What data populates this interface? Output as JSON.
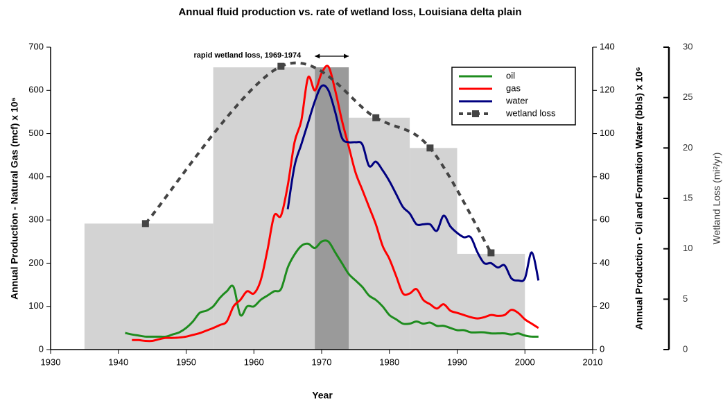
{
  "chart_data": {
    "type": "line",
    "title": "Annual fluid production vs. rate of wetland loss, Louisiana delta plain",
    "xlabel": "Year",
    "ylabel": "Annual Production - Natural Gas (mcf) x 10⁶",
    "y2label": "Annual Production - Oil and Formation Water (bbls) x 10⁶",
    "y3label": "Wetland Loss (mi²/yr)",
    "annotation": {
      "text": "rapid wetland loss, 1969-1974",
      "span": [
        1969,
        1974
      ],
      "color": "#9a9a9a"
    },
    "xlim": [
      1930,
      2010
    ],
    "xticks": [
      1930,
      1940,
      1950,
      1960,
      1970,
      1980,
      1990,
      2000,
      2010
    ],
    "ylim": [
      0,
      700
    ],
    "yticks": [
      0,
      100,
      200,
      300,
      400,
      500,
      600,
      700
    ],
    "y2lim": [
      0,
      140
    ],
    "y2ticks": [
      0,
      20,
      40,
      60,
      80,
      100,
      120,
      140
    ],
    "y3lim": [
      0,
      30
    ],
    "y3ticks": [
      0,
      5,
      10,
      15,
      20,
      25,
      30
    ],
    "legend": "upper right",
    "periods": {
      "bins": [
        1935,
        1954,
        1974,
        1983,
        1990,
        2000
      ],
      "values": [
        12.5,
        28,
        23,
        20,
        9.5
      ],
      "color": "#d3d3d3",
      "axis": "y3"
    },
    "x": [
      1941,
      1942,
      1943,
      1944,
      1945,
      1946,
      1947,
      1948,
      1949,
      1950,
      1951,
      1952,
      1953,
      1954,
      1955,
      1956,
      1957,
      1958,
      1959,
      1960,
      1961,
      1962,
      1963,
      1964,
      1965,
      1966,
      1967,
      1968,
      1969,
      1970,
      1971,
      1972,
      1973,
      1974,
      1975,
      1976,
      1977,
      1978,
      1979,
      1980,
      1981,
      1982,
      1983,
      1984,
      1985,
      1986,
      1987,
      1988,
      1989,
      1990,
      1991,
      1992,
      1993,
      1994,
      1995,
      1996,
      1997,
      1998,
      1999,
      2000,
      2001,
      2002
    ],
    "series": [
      {
        "name": "oil",
        "color": "#1e8c1e",
        "axis": "y2",
        "values": [
          7.7,
          7,
          6.5,
          6,
          6,
          6,
          6,
          7,
          8,
          10,
          13,
          17,
          18,
          20,
          24,
          27,
          29,
          16,
          20,
          20,
          23,
          25,
          27,
          28,
          38,
          44,
          48,
          49,
          47,
          50,
          50,
          45,
          40,
          35,
          32,
          29,
          25,
          23,
          20,
          16,
          14,
          12,
          12,
          13,
          12,
          12.5,
          11,
          11,
          10,
          9,
          9,
          8,
          8,
          8,
          7.5,
          7.5,
          7.5,
          7,
          7.5,
          6.5,
          6,
          6
        ]
      },
      {
        "name": "gas",
        "color": "#ff0000",
        "values": [
          null,
          22,
          22,
          20,
          20,
          24,
          27,
          27,
          28,
          30,
          34,
          38,
          44,
          50,
          57,
          65,
          100,
          115,
          135,
          130,
          160,
          230,
          310,
          310,
          380,
          480,
          530,
          630,
          600,
          640,
          655,
          600,
          530,
          470,
          410,
          370,
          330,
          290,
          240,
          210,
          170,
          130,
          130,
          140,
          115,
          105,
          95,
          105,
          90,
          85,
          80,
          75,
          72,
          75,
          80,
          78,
          80,
          92,
          85,
          70,
          60,
          50
        ]
      },
      {
        "name": "water",
        "color": "#000080",
        "axis": "y2",
        "values": [
          null,
          null,
          null,
          null,
          null,
          null,
          null,
          null,
          null,
          null,
          null,
          null,
          null,
          null,
          null,
          null,
          null,
          null,
          null,
          null,
          null,
          null,
          null,
          null,
          65,
          85,
          95,
          105,
          115,
          122,
          120,
          110,
          98,
          96,
          96,
          95,
          85,
          87,
          83,
          78,
          72,
          66,
          63,
          58,
          58,
          58,
          55,
          62,
          57,
          54,
          52,
          52,
          45,
          40,
          40,
          38,
          39,
          33,
          32,
          33,
          45,
          32
        ]
      },
      {
        "name": "wetland loss",
        "color": "#444444",
        "axis": "y3",
        "dashed": true,
        "x": [
          1944,
          1964,
          1978,
          1986,
          1995
        ],
        "values": [
          12.5,
          28.1,
          23,
          20,
          9.6
        ]
      }
    ]
  }
}
